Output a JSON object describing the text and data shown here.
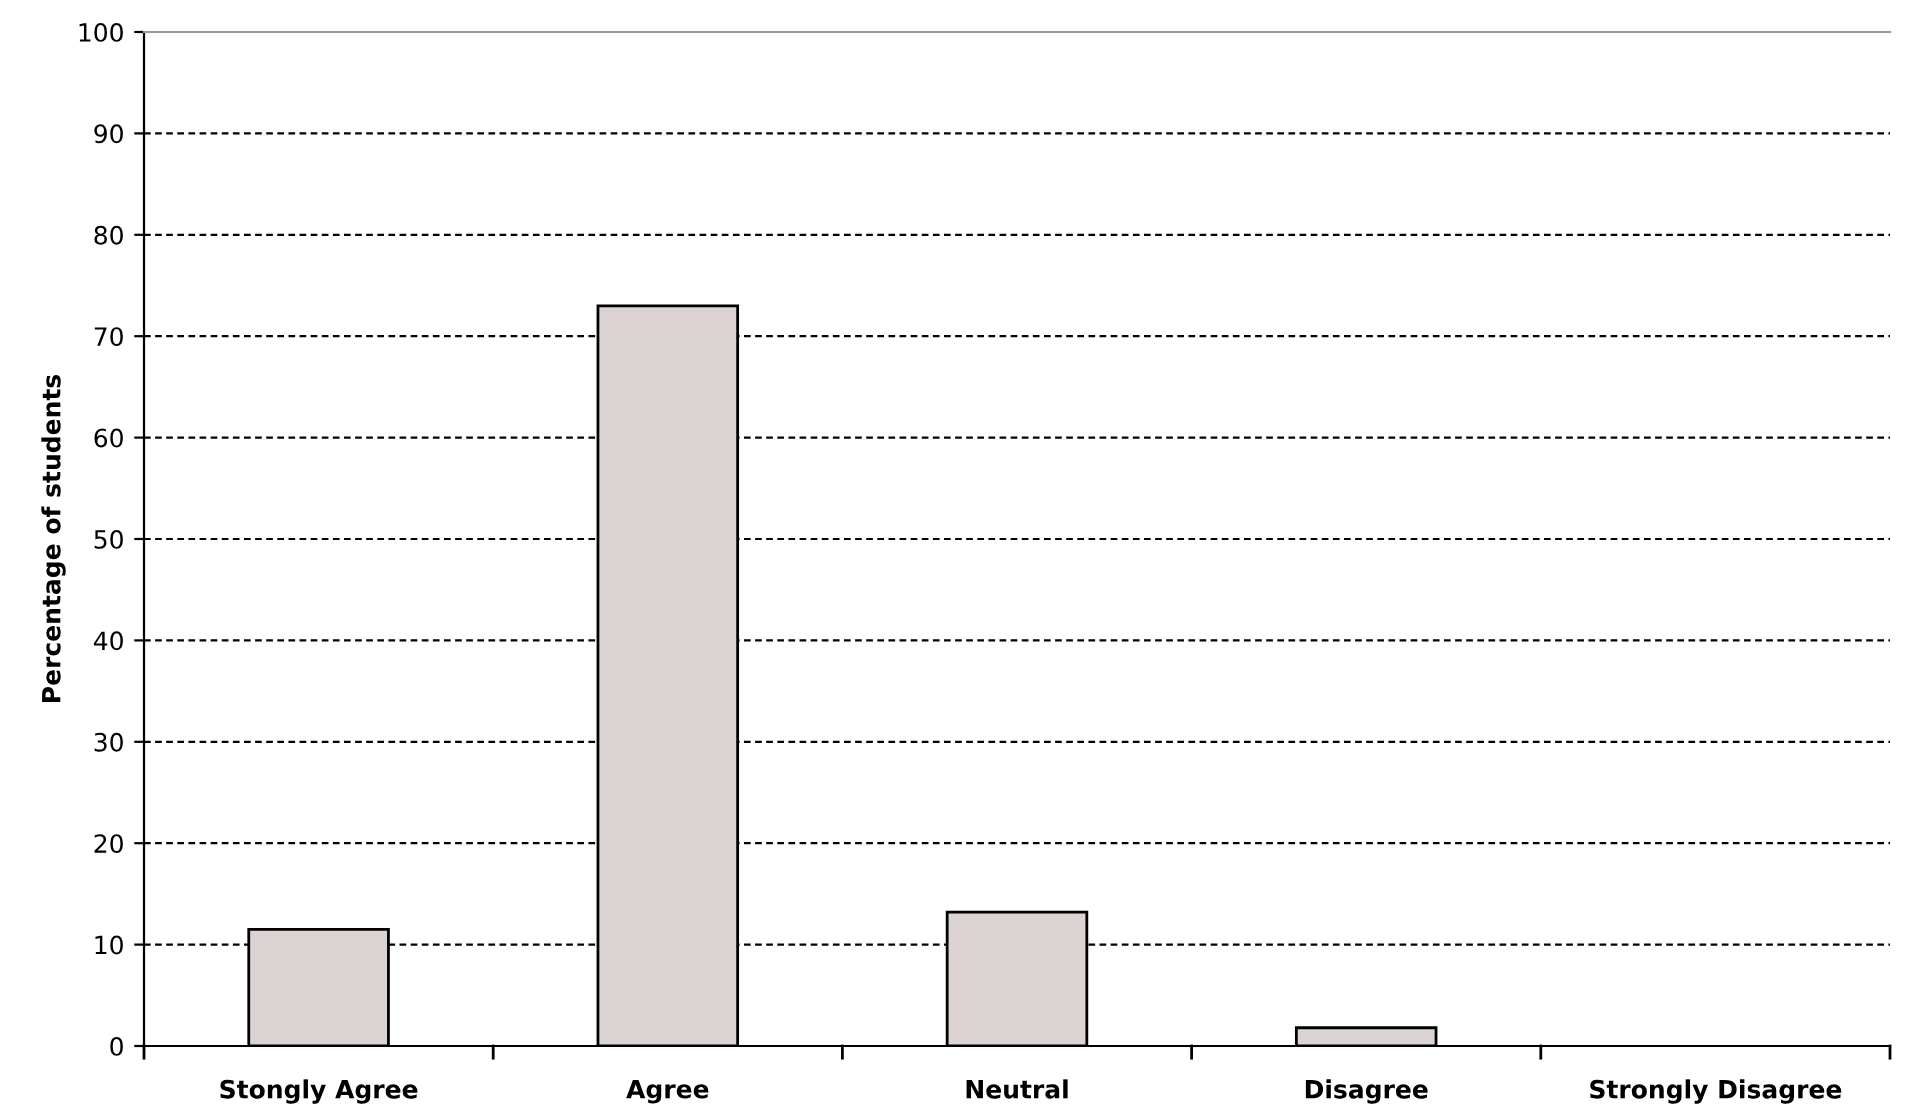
{
  "chart_data": {
    "type": "bar",
    "ylabel": "Percentage of students",
    "categories": [
      "Stongly Agree",
      "Agree",
      "Neutral",
      "Disagree",
      "Strongly Disagree"
    ],
    "values": [
      11.5,
      73,
      13.2,
      1.8,
      0
    ],
    "color": "#dbd3d1",
    "ylim": [
      0,
      100
    ],
    "yticks": [
      0,
      10,
      20,
      30,
      40,
      50,
      60,
      70,
      80,
      90,
      100
    ],
    "grid": "y",
    "line_style": "dashed"
  }
}
